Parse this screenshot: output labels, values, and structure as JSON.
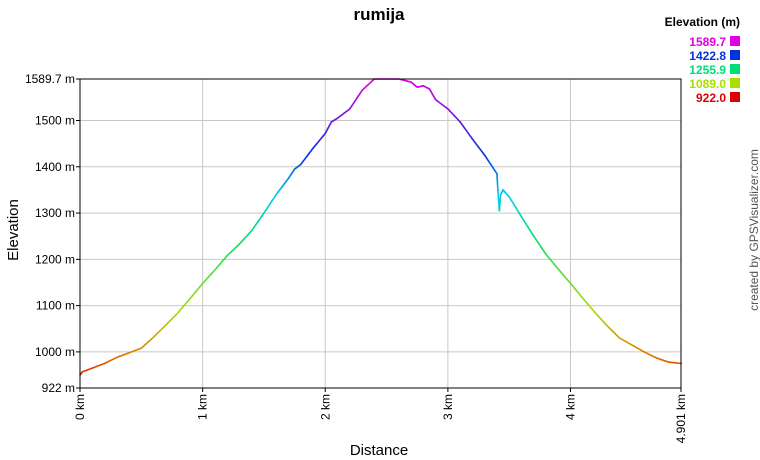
{
  "chart_data": {
    "type": "line",
    "title": "rumija",
    "xlabel": "Distance",
    "ylabel": "Elevation",
    "xlim": [
      0,
      4.901
    ],
    "ylim": [
      922,
      1589.7
    ],
    "x_ticks": [
      {
        "value": 0,
        "label": "0 km"
      },
      {
        "value": 1,
        "label": "1 km"
      },
      {
        "value": 2,
        "label": "2 km"
      },
      {
        "value": 3,
        "label": "3 km"
      },
      {
        "value": 4,
        "label": "4 km"
      },
      {
        "value": 4.901,
        "label": "4.901 km"
      }
    ],
    "y_ticks": [
      {
        "value": 922,
        "label": "922 m"
      },
      {
        "value": 1000,
        "label": "1000 m"
      },
      {
        "value": 1100,
        "label": "1100 m"
      },
      {
        "value": 1200,
        "label": "1200 m"
      },
      {
        "value": 1300,
        "label": "1300 m"
      },
      {
        "value": 1400,
        "label": "1400 m"
      },
      {
        "value": 1500,
        "label": "1500 m"
      },
      {
        "value": 1589.7,
        "label": "1589.7 m"
      }
    ],
    "grid": true,
    "legend": {
      "title": "Elevation (m)",
      "placement": "top-right",
      "entries": [
        {
          "label": "1589.7",
          "color": "#e000e0"
        },
        {
          "label": "1422.8",
          "color": "#0033dd"
        },
        {
          "label": "1255.9",
          "color": "#00dd77"
        },
        {
          "label": "1089.0",
          "color": "#aadd00"
        },
        {
          "label": "922.0",
          "color": "#dd0000"
        }
      ]
    },
    "color_scale": [
      {
        "elev": 922.0,
        "color": "#dd0000"
      },
      {
        "elev": 1005.0,
        "color": "#dd8800"
      },
      {
        "elev": 1089.0,
        "color": "#aadd00"
      },
      {
        "elev": 1255.9,
        "color": "#00dd77"
      },
      {
        "elev": 1340.0,
        "color": "#00ccee"
      },
      {
        "elev": 1422.8,
        "color": "#0033dd"
      },
      {
        "elev": 1589.7,
        "color": "#e000e0"
      }
    ],
    "series": [
      {
        "x": [
          0,
          0.02,
          0.1,
          0.2,
          0.3,
          0.4,
          0.5,
          0.6,
          0.7,
          0.8,
          0.9,
          1.0,
          1.1,
          1.2,
          1.3,
          1.4,
          1.5,
          1.6,
          1.7,
          1.75,
          1.8,
          1.9,
          2.0,
          2.05,
          2.1,
          2.2,
          2.3,
          2.4,
          2.5,
          2.6,
          2.7,
          2.75,
          2.8,
          2.85,
          2.9,
          3.0,
          3.1,
          3.2,
          3.3,
          3.4,
          3.41,
          3.42,
          3.43,
          3.45,
          3.5,
          3.6,
          3.7,
          3.8,
          3.9,
          4.0,
          4.1,
          4.2,
          4.3,
          4.4,
          4.5,
          4.6,
          4.7,
          4.8,
          4.9,
          4.901
        ],
        "y": [
          950,
          957,
          965,
          975,
          988,
          998,
          1008,
          1032,
          1058,
          1085,
          1116,
          1148,
          1177,
          1208,
          1233,
          1262,
          1300,
          1340,
          1375,
          1395,
          1405,
          1440,
          1472,
          1497,
          1505,
          1525,
          1565,
          1589.7,
          1589.7,
          1589.7,
          1583,
          1572,
          1575,
          1568,
          1545,
          1525,
          1497,
          1460,
          1425,
          1385,
          1340,
          1305,
          1340,
          1350,
          1335,
          1292,
          1250,
          1211,
          1179,
          1148,
          1116,
          1085,
          1056,
          1030,
          1015,
          1000,
          987,
          978,
          975,
          975
        ]
      }
    ]
  },
  "credit": "created by GPSVisualizer.com"
}
